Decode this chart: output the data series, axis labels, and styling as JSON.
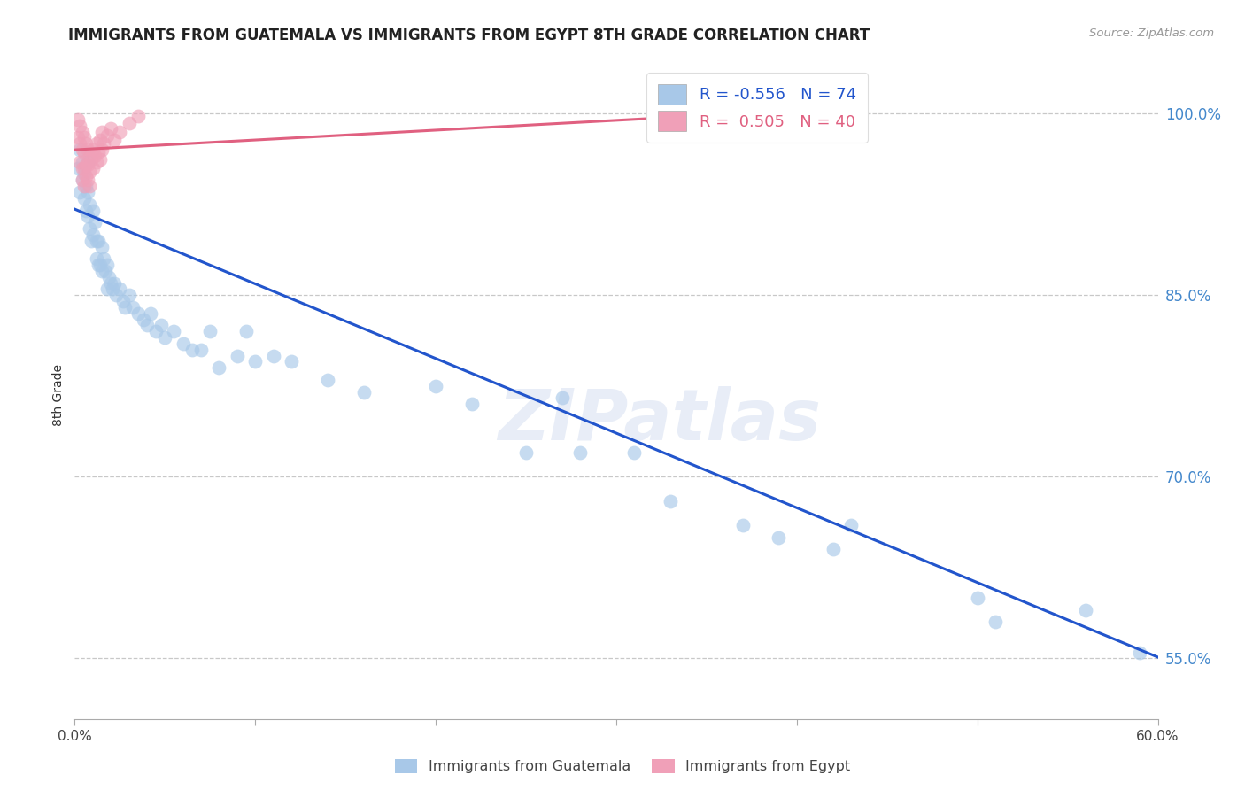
{
  "title": "IMMIGRANTS FROM GUATEMALA VS IMMIGRANTS FROM EGYPT 8TH GRADE CORRELATION CHART",
  "source_text": "Source: ZipAtlas.com",
  "ylabel": "8th Grade",
  "xlim": [
    0.0,
    0.6
  ],
  "ylim": [
    0.5,
    1.035
  ],
  "xticks": [
    0.0,
    0.1,
    0.2,
    0.3,
    0.4,
    0.5,
    0.6
  ],
  "xticklabels": [
    "0.0%",
    "",
    "",
    "",
    "",
    "",
    "60.0%"
  ],
  "yticks": [
    0.55,
    0.7,
    0.85,
    1.0
  ],
  "yticklabels": [
    "55.0%",
    "70.0%",
    "85.0%",
    "100.0%"
  ],
  "grid_color": "#c8c8c8",
  "background_color": "#ffffff",
  "blue_color": "#a8c8e8",
  "pink_color": "#f0a0b8",
  "blue_line_color": "#2255cc",
  "pink_line_color": "#e06080",
  "R_blue": -0.556,
  "N_blue": 74,
  "R_pink": 0.505,
  "N_pink": 40,
  "blue_line_x0": 0.0,
  "blue_line_y0": 0.921,
  "blue_line_x1": 0.6,
  "blue_line_y1": 0.551,
  "pink_line_x0": 0.0,
  "pink_line_y0": 0.97,
  "pink_line_x1": 0.345,
  "pink_line_y1": 0.998,
  "blue_scatter": [
    [
      0.002,
      0.955
    ],
    [
      0.003,
      0.935
    ],
    [
      0.003,
      0.97
    ],
    [
      0.004,
      0.96
    ],
    [
      0.004,
      0.945
    ],
    [
      0.005,
      0.95
    ],
    [
      0.005,
      0.93
    ],
    [
      0.006,
      0.94
    ],
    [
      0.006,
      0.92
    ],
    [
      0.007,
      0.96
    ],
    [
      0.007,
      0.935
    ],
    [
      0.007,
      0.915
    ],
    [
      0.008,
      0.925
    ],
    [
      0.008,
      0.905
    ],
    [
      0.009,
      0.895
    ],
    [
      0.01,
      0.92
    ],
    [
      0.01,
      0.9
    ],
    [
      0.011,
      0.91
    ],
    [
      0.012,
      0.895
    ],
    [
      0.012,
      0.88
    ],
    [
      0.013,
      0.895
    ],
    [
      0.013,
      0.875
    ],
    [
      0.014,
      0.875
    ],
    [
      0.015,
      0.89
    ],
    [
      0.015,
      0.87
    ],
    [
      0.016,
      0.88
    ],
    [
      0.017,
      0.87
    ],
    [
      0.018,
      0.875
    ],
    [
      0.018,
      0.855
    ],
    [
      0.019,
      0.865
    ],
    [
      0.02,
      0.86
    ],
    [
      0.021,
      0.855
    ],
    [
      0.022,
      0.86
    ],
    [
      0.023,
      0.85
    ],
    [
      0.025,
      0.855
    ],
    [
      0.027,
      0.845
    ],
    [
      0.028,
      0.84
    ],
    [
      0.03,
      0.85
    ],
    [
      0.032,
      0.84
    ],
    [
      0.035,
      0.835
    ],
    [
      0.038,
      0.83
    ],
    [
      0.04,
      0.825
    ],
    [
      0.042,
      0.835
    ],
    [
      0.045,
      0.82
    ],
    [
      0.048,
      0.825
    ],
    [
      0.05,
      0.815
    ],
    [
      0.055,
      0.82
    ],
    [
      0.06,
      0.81
    ],
    [
      0.065,
      0.805
    ],
    [
      0.07,
      0.805
    ],
    [
      0.075,
      0.82
    ],
    [
      0.08,
      0.79
    ],
    [
      0.09,
      0.8
    ],
    [
      0.095,
      0.82
    ],
    [
      0.1,
      0.795
    ],
    [
      0.11,
      0.8
    ],
    [
      0.12,
      0.795
    ],
    [
      0.14,
      0.78
    ],
    [
      0.16,
      0.77
    ],
    [
      0.2,
      0.775
    ],
    [
      0.22,
      0.76
    ],
    [
      0.25,
      0.72
    ],
    [
      0.27,
      0.765
    ],
    [
      0.28,
      0.72
    ],
    [
      0.31,
      0.72
    ],
    [
      0.33,
      0.68
    ],
    [
      0.37,
      0.66
    ],
    [
      0.39,
      0.65
    ],
    [
      0.42,
      0.64
    ],
    [
      0.43,
      0.66
    ],
    [
      0.5,
      0.6
    ],
    [
      0.51,
      0.58
    ],
    [
      0.56,
      0.59
    ],
    [
      0.59,
      0.555
    ]
  ],
  "pink_scatter": [
    [
      0.002,
      0.995
    ],
    [
      0.002,
      0.98
    ],
    [
      0.003,
      0.99
    ],
    [
      0.003,
      0.975
    ],
    [
      0.003,
      0.96
    ],
    [
      0.004,
      0.985
    ],
    [
      0.004,
      0.97
    ],
    [
      0.004,
      0.955
    ],
    [
      0.004,
      0.945
    ],
    [
      0.005,
      0.98
    ],
    [
      0.005,
      0.968
    ],
    [
      0.005,
      0.955
    ],
    [
      0.005,
      0.94
    ],
    [
      0.006,
      0.975
    ],
    [
      0.006,
      0.958
    ],
    [
      0.006,
      0.948
    ],
    [
      0.007,
      0.97
    ],
    [
      0.007,
      0.958
    ],
    [
      0.007,
      0.945
    ],
    [
      0.008,
      0.965
    ],
    [
      0.008,
      0.952
    ],
    [
      0.008,
      0.94
    ],
    [
      0.009,
      0.962
    ],
    [
      0.01,
      0.97
    ],
    [
      0.01,
      0.955
    ],
    [
      0.011,
      0.965
    ],
    [
      0.012,
      0.975
    ],
    [
      0.012,
      0.96
    ],
    [
      0.013,
      0.968
    ],
    [
      0.014,
      0.978
    ],
    [
      0.014,
      0.962
    ],
    [
      0.015,
      0.985
    ],
    [
      0.015,
      0.97
    ],
    [
      0.016,
      0.975
    ],
    [
      0.018,
      0.982
    ],
    [
      0.02,
      0.988
    ],
    [
      0.022,
      0.978
    ],
    [
      0.025,
      0.985
    ],
    [
      0.03,
      0.992
    ],
    [
      0.035,
      0.998
    ]
  ],
  "watermark": "ZIPatlas",
  "legend_blue_label": "Immigrants from Guatemala",
  "legend_pink_label": "Immigrants from Egypt"
}
